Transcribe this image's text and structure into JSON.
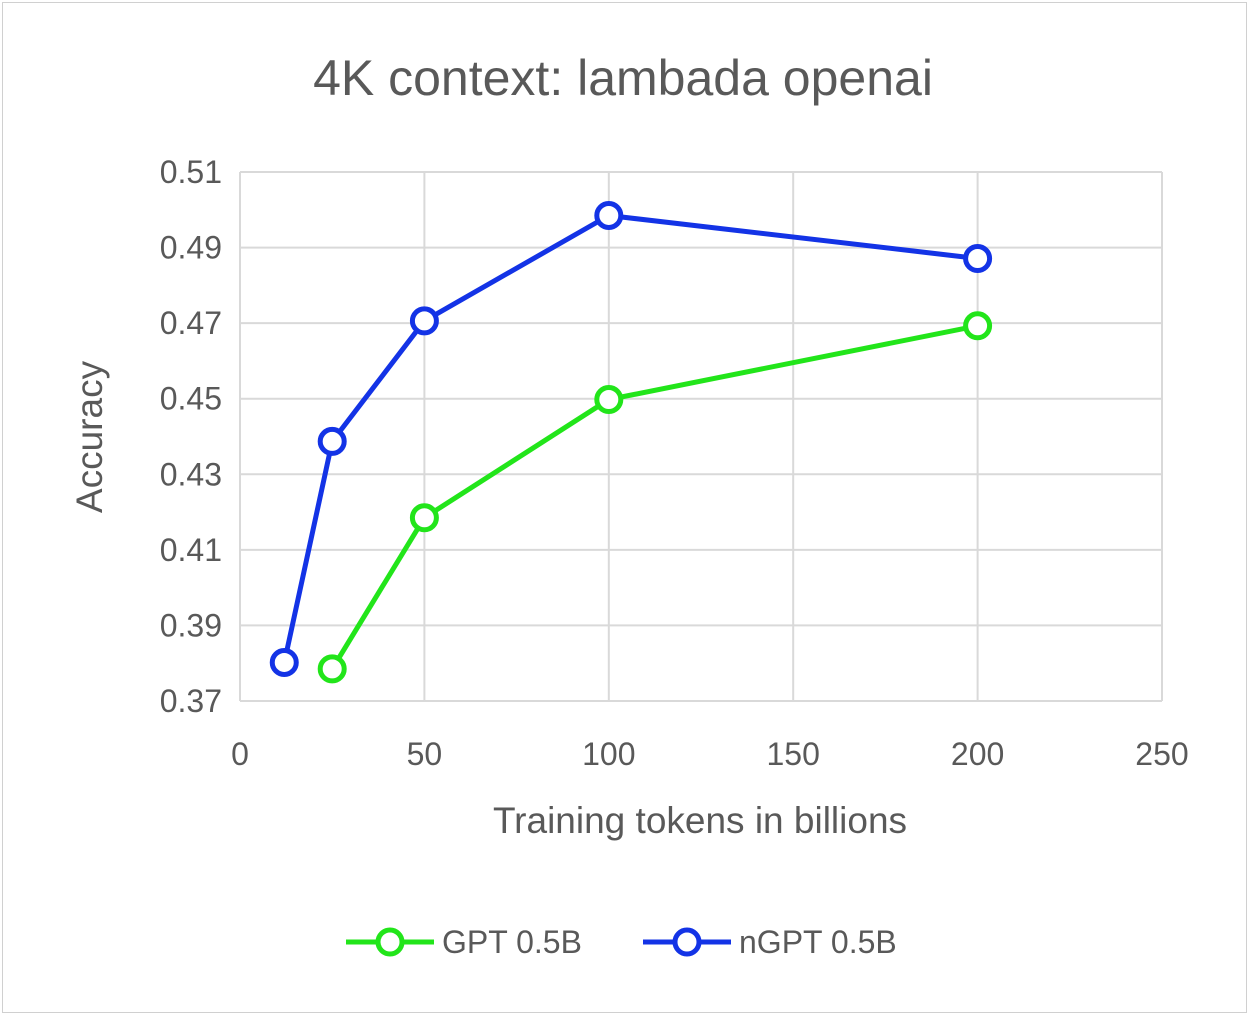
{
  "chart_data": {
    "type": "line",
    "title": "4K context: lambada openai",
    "xlabel": "Training tokens in billions",
    "ylabel": "Accuracy",
    "xlim": [
      0,
      250
    ],
    "ylim": [
      0.37,
      0.51
    ],
    "xticks": [
      0,
      50,
      100,
      150,
      200,
      250
    ],
    "xtick_labels": [
      "0",
      "50",
      "100",
      "150",
      "200",
      "250"
    ],
    "yticks": [
      0.37,
      0.39,
      0.41,
      0.43,
      0.45,
      0.47,
      0.49,
      0.51
    ],
    "ytick_labels": [
      "0.37",
      "0.39",
      "0.41",
      "0.43",
      "0.45",
      "0.47",
      "0.49",
      "0.51"
    ],
    "grid": true,
    "legend_position": "bottom",
    "series": [
      {
        "name": "GPT 0.5B",
        "color": "#22e51a",
        "x": [
          25,
          50,
          100,
          200
        ],
        "y": [
          0.3785,
          0.4185,
          0.4498,
          0.4693
        ]
      },
      {
        "name": "nGPT 0.5B",
        "color": "#1333e6",
        "x": [
          12,
          25,
          50,
          100,
          200
        ],
        "y": [
          0.3802,
          0.4387,
          0.4706,
          0.4985,
          0.4871
        ]
      }
    ]
  }
}
